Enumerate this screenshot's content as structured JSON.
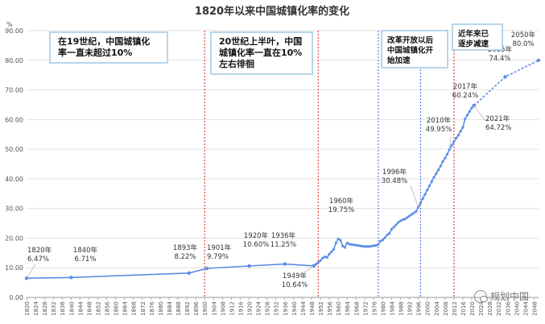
{
  "chart_data": {
    "type": "line",
    "title": "1820年以来中国城镇化率的变化",
    "ylabel": "%",
    "ylim": [
      0,
      90
    ],
    "yticks": [
      "0.00",
      "10.00",
      "20.00",
      "30.00",
      "40.00",
      "50.00",
      "60.00",
      "70.00",
      "80.00",
      "90.00"
    ],
    "xlim": [
      1820,
      2050
    ],
    "xticks": [
      "1820",
      "1824",
      "1828",
      "1832",
      "1836",
      "1840",
      "1844",
      "1848",
      "1852",
      "1856",
      "1860",
      "1864",
      "1868",
      "1872",
      "1876",
      "1880",
      "1884",
      "1888",
      "1892",
      "1896",
      "1900",
      "1904",
      "1908",
      "1912",
      "1916",
      "1920",
      "1924",
      "1928",
      "1932",
      "1936",
      "1940",
      "1944",
      "1948",
      "1952",
      "1956",
      "1960",
      "1964",
      "1968",
      "1972",
      "1976",
      "1980",
      "1984",
      "1988",
      "1992",
      "1996",
      "2000",
      "2004",
      "2008",
      "2012",
      "2016",
      "2020",
      "2024",
      "2028",
      "2032",
      "2036",
      "2040",
      "2044",
      "2048"
    ],
    "series": [
      {
        "x": [
          1820,
          1840,
          1893,
          1901,
          1920,
          1936,
          1949,
          1950,
          1951,
          1952,
          1953,
          1954,
          1955,
          1956,
          1957,
          1958,
          1959,
          1960,
          1961,
          1962,
          1963,
          1964,
          1965,
          1966,
          1967,
          1968,
          1969,
          1970,
          1971,
          1972,
          1973,
          1974,
          1975,
          1976,
          1977,
          1978,
          1979,
          1980,
          1981,
          1982,
          1983,
          1984,
          1985,
          1986,
          1987,
          1988,
          1989,
          1990,
          1991,
          1992,
          1993,
          1994,
          1995,
          1996,
          1997,
          1998,
          1999,
          2000,
          2001,
          2002,
          2003,
          2004,
          2005,
          2006,
          2007,
          2008,
          2009,
          2010,
          2011,
          2012,
          2013,
          2014,
          2015,
          2016,
          2017,
          2018,
          2019,
          2020,
          2021
        ],
        "values": [
          6.47,
          6.71,
          8.22,
          9.79,
          10.6,
          11.25,
          10.64,
          11.18,
          11.78,
          12.46,
          13.31,
          13.69,
          13.48,
          14.62,
          15.39,
          16.25,
          18.41,
          19.75,
          19.29,
          17.33,
          16.84,
          18.37,
          17.98,
          17.86,
          17.74,
          17.62,
          17.5,
          17.38,
          17.26,
          17.13,
          17.2,
          17.16,
          17.34,
          17.44,
          17.55,
          17.92,
          18.96,
          19.39,
          20.16,
          21.13,
          21.62,
          23.01,
          23.71,
          24.52,
          25.32,
          25.81,
          26.21,
          26.41,
          26.94,
          27.46,
          27.99,
          28.51,
          29.04,
          30.48,
          31.91,
          33.35,
          34.78,
          36.22,
          37.66,
          39.09,
          40.53,
          41.76,
          42.99,
          44.34,
          45.89,
          46.99,
          48.34,
          49.95,
          51.27,
          52.57,
          53.73,
          54.77,
          56.1,
          57.35,
          60.24,
          61.5,
          62.71,
          63.89,
          64.72
        ]
      },
      {
        "x": [
          2021,
          2035,
          2050
        ],
        "values": [
          64.72,
          74.4,
          80.0
        ]
      }
    ],
    "point_labels": [
      {
        "x": 1820,
        "y": 6.47,
        "lines": [
          "1820年",
          "6.47%"
        ]
      },
      {
        "x": 1840,
        "y": 6.71,
        "lines": [
          "1840年",
          "6.71%"
        ]
      },
      {
        "x": 1893,
        "y": 8.22,
        "lines": [
          "1893年",
          "8.22%"
        ]
      },
      {
        "x": 1901,
        "y": 9.79,
        "lines": [
          "1901年",
          "9.79%"
        ]
      },
      {
        "x": 1920,
        "y": 10.6,
        "lines": [
          "1920年",
          "10.60%"
        ]
      },
      {
        "x": 1936,
        "y": 11.25,
        "lines": [
          "1936年",
          "11.25%"
        ]
      },
      {
        "x": 1949,
        "y": 10.64,
        "lines": [
          "1949年",
          "10.64%"
        ]
      },
      {
        "x": 1960,
        "y": 19.75,
        "lines": [
          "1960年",
          "19.75%"
        ]
      },
      {
        "x": 1996,
        "y": 30.48,
        "lines": [
          "1996年",
          "30.48%"
        ]
      },
      {
        "x": 2010,
        "y": 49.95,
        "lines": [
          "2010年",
          "49.95%"
        ]
      },
      {
        "x": 2017,
        "y": 60.24,
        "lines": [
          "2017年",
          "60.24%"
        ]
      },
      {
        "x": 2021,
        "y": 64.72,
        "lines": [
          "2021年",
          "64.72%"
        ]
      },
      {
        "x": 2035,
        "y": 74.4,
        "lines": [
          "2035年",
          "74.4%"
        ]
      },
      {
        "x": 2050,
        "y": 80.0,
        "lines": [
          "2050年",
          "80.0%"
        ]
      }
    ],
    "vertical_lines": [
      {
        "x": 1900,
        "color": "#e03030"
      },
      {
        "x": 1951,
        "color": "#e03030"
      },
      {
        "x": 1978,
        "color": "#4a72d8"
      },
      {
        "x": 1997,
        "color": "#4a72d8"
      },
      {
        "x": 2012,
        "color": "#e03030"
      }
    ],
    "annotations": [
      {
        "lines": [
          "在19世纪，中国城镇化",
          "率一直未超过10%"
        ]
      },
      {
        "lines": [
          "20世纪上半叶，中国",
          "城镇化率一直在10%",
          "左右徘徊"
        ]
      },
      {
        "lines": [
          "改革开放以后",
          "中国城镇化开",
          "始加速"
        ]
      },
      {
        "lines": [
          "近年来已",
          "逐步减速"
        ]
      }
    ],
    "colors": {
      "line": "#5b8de6",
      "marker": "#5b8de6",
      "grid": "#e2e2e2",
      "note_border": "#9dc9e6"
    }
  },
  "watermark": {
    "text": "规划中国",
    "icon": "wechat-icon"
  }
}
